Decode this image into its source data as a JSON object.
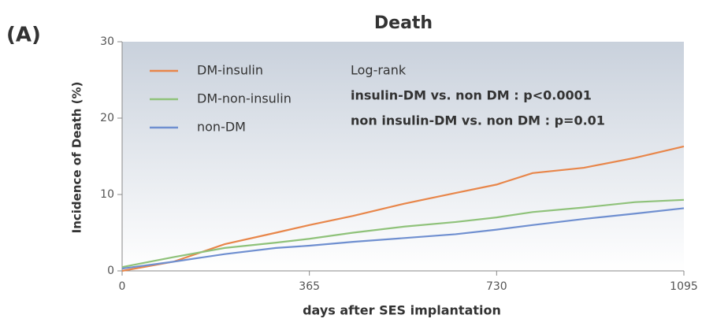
{
  "chart_data": {
    "type": "line",
    "panel_label": "(A)",
    "title": "Death",
    "x_label": "days after SES implantation",
    "y_label": "Incidence of Death (%)",
    "x": [
      0,
      100,
      200,
      300,
      365,
      450,
      550,
      650,
      730,
      800,
      900,
      1000,
      1095
    ],
    "series": [
      {
        "name": "DM-insulin",
        "color": "#e8864a",
        "values": [
          0,
          1.2,
          3.5,
          5,
          6,
          7.2,
          8.8,
          10.2,
          11.3,
          12.8,
          13.5,
          14.8,
          16.3
        ]
      },
      {
        "name": "DM-non-insulin",
        "color": "#8fc27a",
        "values": [
          0.5,
          1.8,
          3,
          3.7,
          4.2,
          5,
          5.8,
          6.4,
          7,
          7.7,
          8.3,
          9,
          9.3
        ]
      },
      {
        "name": "non-DM",
        "color": "#6f8fd0",
        "values": [
          0.3,
          1.2,
          2.2,
          3,
          3.3,
          3.8,
          4.3,
          4.8,
          5.4,
          6,
          6.8,
          7.5,
          8.2
        ]
      }
    ],
    "annotations": [
      "Log-rank",
      "insulin-DM vs. non DM : p<0.0001",
      "non insulin-DM vs. non DM : p=0.01"
    ],
    "xlim": [
      0,
      1095
    ],
    "ylim": [
      0,
      30
    ],
    "xticks": [
      0,
      365,
      730,
      1095
    ],
    "yticks": [
      0,
      10,
      20,
      30
    ],
    "legend": "upper-left"
  }
}
